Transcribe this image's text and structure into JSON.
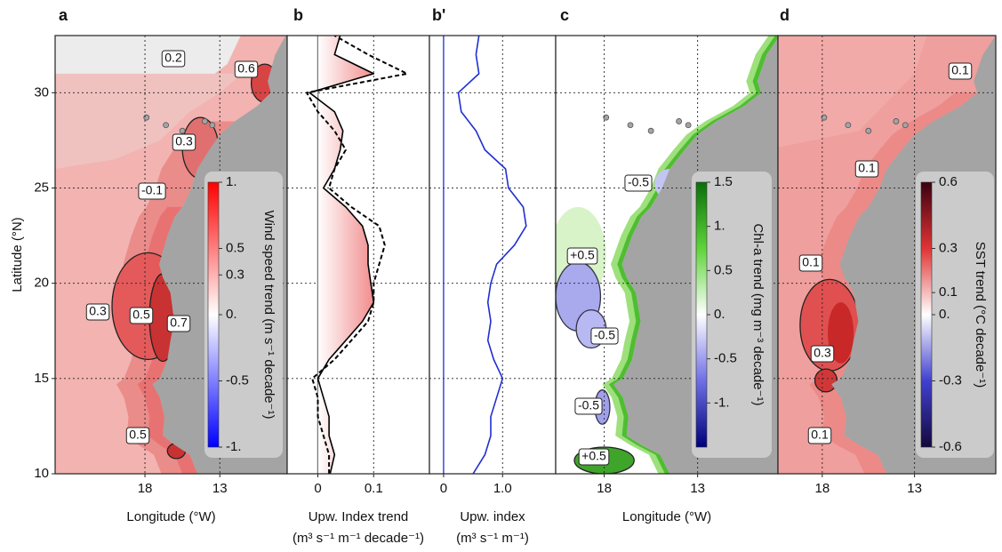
{
  "chart_data": [
    {
      "type": "map",
      "panel": "a",
      "xlim": [
        24,
        8.5
      ],
      "xticks": [
        18,
        13
      ],
      "ylim": [
        10,
        33
      ],
      "yticks": [
        10,
        15,
        20,
        25,
        30
      ],
      "grid": true,
      "xlabel": "Longitude (°W)",
      "ylabel": "Latitude (°N)",
      "colorbar": {
        "label": "Wind speed  trend (m s⁻¹ decade⁻¹)",
        "lim": [
          -1,
          1
        ],
        "ticks": [
          {
            "value": 1,
            "label": "1."
          },
          0.5,
          0.3,
          {
            "value": 0,
            "label": "0."
          },
          -0.5,
          {
            "value": -1,
            "label": "-1."
          }
        ],
        "colors": [
          "#0000ff",
          "#ffffff",
          "#ff0000"
        ]
      },
      "contour_labels": [
        "0.2",
        "0.6",
        "0.3",
        "-0.1",
        "0.3",
        "0.5",
        "0.7",
        "0.5"
      ]
    },
    {
      "type": "line",
      "panel": "b",
      "xlim": [
        -0.055,
        0.2
      ],
      "xticks": [
        0,
        0.1
      ],
      "ylim": [
        10,
        33
      ],
      "yticks": [
        10,
        15,
        20,
        25,
        30
      ],
      "grid": true,
      "xlabel": [
        "Upw. Index trend",
        "(m³ s⁻¹ m⁻¹ decade⁻¹)"
      ],
      "y": [
        10,
        11,
        12,
        13,
        14,
        15,
        16,
        17,
        18,
        19,
        20,
        21,
        22,
        23,
        24,
        25,
        26,
        27,
        28,
        29,
        30,
        31,
        32,
        33
      ],
      "area_colors": [
        "#3a7bd5",
        "#ffffff",
        "#e41a1c"
      ],
      "series": [
        {
          "color": "#000000",
          "fill": true,
          "values": [
            0.022,
            0.03,
            0.02,
            0.02,
            0.01,
            0.0,
            0.02,
            0.05,
            0.08,
            0.1,
            0.095,
            0.09,
            0.09,
            0.08,
            0.05,
            0.01,
            0.03,
            0.04,
            0.045,
            0.03,
            -0.015,
            0.1,
            0.03,
            0.04
          ]
        },
        {
          "color": "#000000",
          "dashed": true,
          "values": [
            0.02,
            0.02,
            0.01,
            0.0,
            0.0,
            -0.01,
            0.03,
            0.06,
            0.09,
            0.1,
            0.1,
            0.11,
            0.12,
            0.11,
            0.06,
            0.02,
            0.03,
            0.05,
            0.03,
            0.0,
            -0.02,
            0.16,
            0.09,
            0.03
          ]
        }
      ]
    },
    {
      "type": "line",
      "panel": "b'",
      "xlim": [
        -0.24,
        1.9
      ],
      "xticks": [
        0,
        {
          "value": 1,
          "label": "1.0"
        }
      ],
      "ylim": [
        10,
        33
      ],
      "yticks": [
        10,
        15,
        20,
        25,
        30
      ],
      "grid": true,
      "xlabel": [
        "Upw. index",
        "(m³ s⁻¹ m⁻¹)"
      ],
      "y": [
        10,
        11,
        12,
        13,
        14,
        15,
        16,
        17,
        18,
        19,
        20,
        21,
        22,
        23,
        24,
        25,
        26,
        27,
        28,
        29,
        30,
        31,
        32,
        33
      ],
      "series": [
        {
          "color": "#1f2fd0",
          "values": [
            0.5,
            0.7,
            0.8,
            0.8,
            0.9,
            1.0,
            0.85,
            0.75,
            0.8,
            0.75,
            0.8,
            0.9,
            1.2,
            1.4,
            1.35,
            1.1,
            1.05,
            0.7,
            0.55,
            0.3,
            0.25,
            0.6,
            0.55,
            0.6
          ]
        }
      ]
    },
    {
      "type": "map",
      "panel": "c",
      "xlim": [
        20.6,
        8.7
      ],
      "xticks": [
        18,
        13
      ],
      "ylim": [
        10,
        33
      ],
      "yticks": [
        10,
        15,
        20,
        25,
        30
      ],
      "grid": true,
      "xlabel": "Longitude (°W)",
      "colorbar": {
        "label": "Chl-a trend (mg m⁻³ decade⁻¹)",
        "lim": [
          -1.5,
          1.5
        ],
        "ticks": [
          1.5,
          {
            "value": 1,
            "label": "1."
          },
          0.5,
          {
            "value": 0,
            "label": "0."
          },
          -0.5,
          {
            "value": -1,
            "label": "-1."
          }
        ],
        "colors": [
          "#00007a",
          "#6e6ee6",
          "#ffffff",
          "#5ed43a",
          "#0a6e0a"
        ]
      },
      "contour_labels": [
        "-0.5",
        "+0.5",
        "-0.5",
        "-0.5",
        "+0.5"
      ]
    },
    {
      "type": "map",
      "panel": "d",
      "xlim": [
        20.4,
        8.6
      ],
      "xticks": [
        18,
        13
      ],
      "ylim": [
        10,
        33
      ],
      "yticks": [
        10,
        15,
        20,
        25,
        30
      ],
      "grid": true,
      "colorbar": {
        "label": "SST trend (°C decade⁻¹)",
        "lim": [
          -0.6,
          0.6
        ],
        "ticks": [
          0.6,
          0.3,
          0.1,
          {
            "value": 0,
            "label": "0."
          },
          -0.3,
          -0.6
        ],
        "colors": [
          "#14083c",
          "#4040d0",
          "#ffffff",
          "#e03434",
          "#3c0010"
        ]
      },
      "contour_labels": [
        "0.1",
        "0.1",
        "0.1",
        "0.3",
        "0.1"
      ]
    }
  ]
}
